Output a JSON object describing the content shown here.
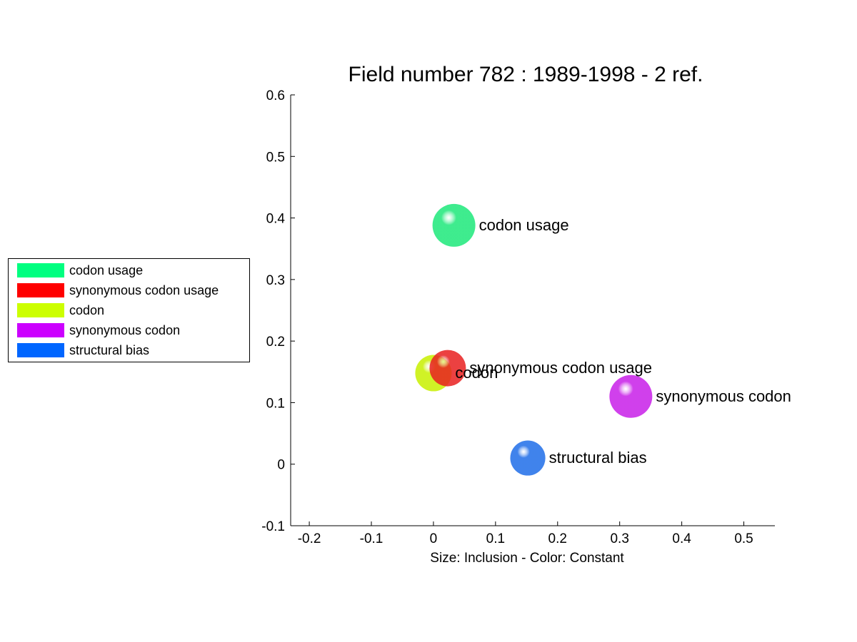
{
  "chart_data": {
    "type": "scatter",
    "title": "Field number 782 : 1989-1998  - 2 ref.",
    "xlabel": "Size: Inclusion - Color: Constant",
    "ylabel": "",
    "xlim": [
      -0.23,
      0.55
    ],
    "ylim": [
      -0.1,
      0.6
    ],
    "xticks": [
      "-0.2",
      "-0.1",
      "0",
      "0.1",
      "0.2",
      "0.3",
      "0.4",
      "0.5"
    ],
    "yticks": [
      "-0.1",
      "0",
      "0.1",
      "0.2",
      "0.3",
      "0.4",
      "0.5",
      "0.6"
    ],
    "grid": false,
    "legend_position": "left",
    "points": [
      {
        "label": "codon usage",
        "x": 0.033,
        "y": 0.388,
        "size": 1.0,
        "color": "#1de87a"
      },
      {
        "label": "synonymous codon usage",
        "x": 0.023,
        "y": 0.156,
        "size": 0.85,
        "color": "#e82020"
      },
      {
        "label": "codon",
        "x": 0.0,
        "y": 0.148,
        "size": 0.85,
        "color": "#c8f000"
      },
      {
        "label": "synonymous codon",
        "x": 0.318,
        "y": 0.11,
        "size": 1.0,
        "color": "#c81ee8"
      },
      {
        "label": "structural bias",
        "x": 0.152,
        "y": 0.01,
        "size": 0.82,
        "color": "#1f6de8"
      }
    ],
    "legend": [
      {
        "label": "codon usage",
        "color": "#00ff80"
      },
      {
        "label": "synonymous codon usage",
        "color": "#ff0000"
      },
      {
        "label": "codon",
        "color": "#ccff00"
      },
      {
        "label": "synonymous codon",
        "color": "#cc00ff"
      },
      {
        "label": "structural bias",
        "color": "#0066ff"
      }
    ]
  }
}
